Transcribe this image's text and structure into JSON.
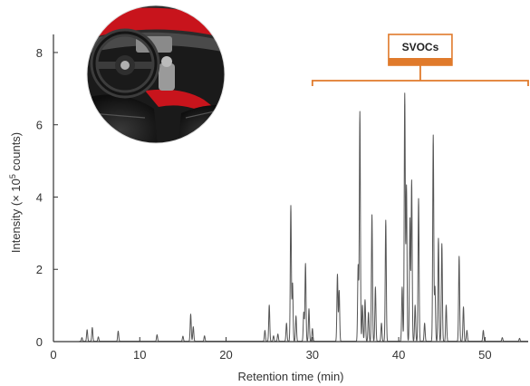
{
  "chart_data": {
    "type": "line",
    "title": "",
    "xlabel": "Retention time (min)",
    "ylabel_parts": {
      "base": "Intensity (× 10",
      "sup": "5",
      "end": " counts)"
    },
    "xlim": [
      0,
      55
    ],
    "ylim": [
      0,
      8.5
    ],
    "x_ticks": [
      0,
      10,
      20,
      30,
      40,
      50
    ],
    "y_ticks": [
      0,
      2,
      4,
      6,
      8
    ],
    "grid": false,
    "line_color": "#555555",
    "accent_color": "#e07a2b",
    "callout": {
      "label": "SVOCs",
      "x_start": 30,
      "x_end": 55
    },
    "peaks": [
      {
        "x": 3.3,
        "y": 0.1
      },
      {
        "x": 3.9,
        "y": 0.32
      },
      {
        "x": 4.5,
        "y": 0.38
      },
      {
        "x": 5.2,
        "y": 0.12
      },
      {
        "x": 7.5,
        "y": 0.28
      },
      {
        "x": 12.0,
        "y": 0.18
      },
      {
        "x": 15.0,
        "y": 0.14
      },
      {
        "x": 15.9,
        "y": 0.75
      },
      {
        "x": 16.2,
        "y": 0.4
      },
      {
        "x": 17.5,
        "y": 0.15
      },
      {
        "x": 24.5,
        "y": 0.3
      },
      {
        "x": 25.0,
        "y": 1.0
      },
      {
        "x": 25.5,
        "y": 0.15
      },
      {
        "x": 26.0,
        "y": 0.2
      },
      {
        "x": 27.0,
        "y": 0.5
      },
      {
        "x": 27.5,
        "y": 3.75
      },
      {
        "x": 27.7,
        "y": 1.6
      },
      {
        "x": 28.1,
        "y": 0.7
      },
      {
        "x": 29.0,
        "y": 0.8
      },
      {
        "x": 29.2,
        "y": 2.15
      },
      {
        "x": 29.6,
        "y": 0.9
      },
      {
        "x": 30.0,
        "y": 0.35
      },
      {
        "x": 32.9,
        "y": 1.85
      },
      {
        "x": 33.1,
        "y": 1.4
      },
      {
        "x": 35.3,
        "y": 2.1
      },
      {
        "x": 35.5,
        "y": 6.35
      },
      {
        "x": 35.8,
        "y": 1.0
      },
      {
        "x": 36.1,
        "y": 1.15
      },
      {
        "x": 36.5,
        "y": 0.8
      },
      {
        "x": 36.9,
        "y": 3.5
      },
      {
        "x": 37.3,
        "y": 1.5
      },
      {
        "x": 38.0,
        "y": 0.5
      },
      {
        "x": 38.5,
        "y": 3.35
      },
      {
        "x": 40.4,
        "y": 1.5
      },
      {
        "x": 40.7,
        "y": 6.85
      },
      {
        "x": 40.9,
        "y": 4.3
      },
      {
        "x": 41.3,
        "y": 3.4
      },
      {
        "x": 41.5,
        "y": 4.45
      },
      {
        "x": 41.9,
        "y": 1.0
      },
      {
        "x": 42.3,
        "y": 3.95
      },
      {
        "x": 43.0,
        "y": 0.5
      },
      {
        "x": 44.0,
        "y": 5.7
      },
      {
        "x": 44.2,
        "y": 1.5
      },
      {
        "x": 44.6,
        "y": 2.85
      },
      {
        "x": 45.0,
        "y": 2.7
      },
      {
        "x": 45.5,
        "y": 1.0
      },
      {
        "x": 47.0,
        "y": 2.35
      },
      {
        "x": 47.5,
        "y": 0.95
      },
      {
        "x": 47.9,
        "y": 0.3
      },
      {
        "x": 49.8,
        "y": 0.3
      },
      {
        "x": 52.0,
        "y": 0.1
      },
      {
        "x": 54.0,
        "y": 0.08
      }
    ]
  }
}
